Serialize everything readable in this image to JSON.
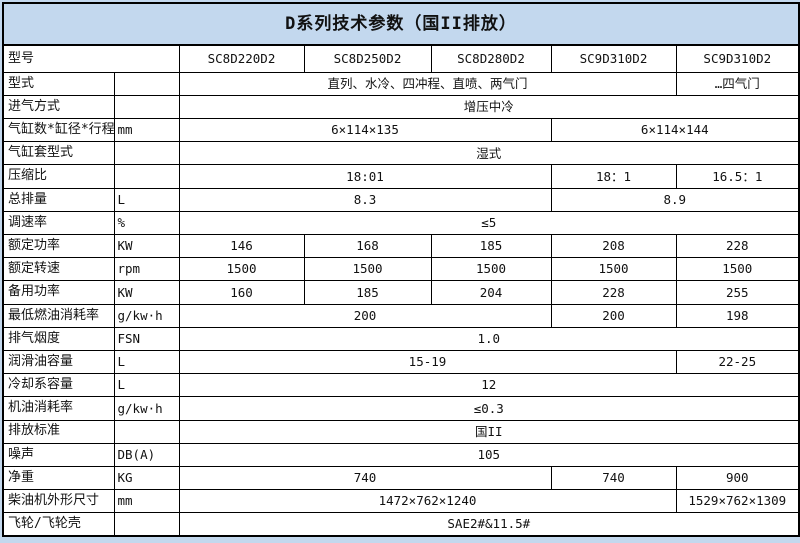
{
  "title": "D系列技术参数（国II排放）",
  "colors": {
    "page_bg": "#c3d8ee",
    "title_bg": "#c3d8ee",
    "cell_bg": "#ffffff",
    "border": "#000000"
  },
  "models": [
    "SC8D220D2",
    "SC8D250D2",
    "SC8D280D2",
    "SC9D310D2",
    "SC9D310D2"
  ],
  "rows": [
    {
      "label": "型号",
      "unit": null,
      "cells": [
        {
          "t": "SC8D220D2",
          "s": 1
        },
        {
          "t": "SC8D250D2",
          "s": 1
        },
        {
          "t": "SC8D280D2",
          "s": 1
        },
        {
          "t": "SC9D310D2",
          "s": 1
        },
        {
          "t": "SC9D310D2",
          "s": 1
        }
      ]
    },
    {
      "label": "型式",
      "unit": "",
      "cells": [
        {
          "t": "直列、水冷、四冲程、直喷、两气门",
          "s": 4
        },
        {
          "t": "…四气门",
          "s": 1
        }
      ]
    },
    {
      "label": "进气方式",
      "unit": "",
      "cells": [
        {
          "t": "增压中冷",
          "s": 5
        }
      ]
    },
    {
      "label": "气缸数*缸径*行程",
      "unit": "mm",
      "cells": [
        {
          "t": "6×114×135",
          "s": 3
        },
        {
          "t": "6×114×144",
          "s": 2
        }
      ]
    },
    {
      "label": "气缸套型式",
      "unit": "",
      "cells": [
        {
          "t": "湿式",
          "s": 5
        }
      ]
    },
    {
      "label": "压缩比",
      "unit": "",
      "cells": [
        {
          "t": "18:01",
          "s": 3
        },
        {
          "t": "18：1",
          "s": 1
        },
        {
          "t": "16.5：1",
          "s": 1
        }
      ]
    },
    {
      "label": "总排量",
      "unit": "L",
      "cells": [
        {
          "t": "8.3",
          "s": 3
        },
        {
          "t": "8.9",
          "s": 2
        }
      ]
    },
    {
      "label": "调速率",
      "unit": "%",
      "cells": [
        {
          "t": "≤5",
          "s": 5
        }
      ]
    },
    {
      "label": "额定功率",
      "unit": "KW",
      "cells": [
        {
          "t": "146",
          "s": 1
        },
        {
          "t": "168",
          "s": 1
        },
        {
          "t": "185",
          "s": 1
        },
        {
          "t": "208",
          "s": 1
        },
        {
          "t": "228",
          "s": 1
        }
      ]
    },
    {
      "label": "额定转速",
      "unit": "rpm",
      "cells": [
        {
          "t": "1500",
          "s": 1
        },
        {
          "t": "1500",
          "s": 1
        },
        {
          "t": "1500",
          "s": 1
        },
        {
          "t": "1500",
          "s": 1
        },
        {
          "t": "1500",
          "s": 1
        }
      ]
    },
    {
      "label": "备用功率",
      "unit": "KW",
      "cells": [
        {
          "t": "160",
          "s": 1
        },
        {
          "t": "185",
          "s": 1
        },
        {
          "t": "204",
          "s": 1
        },
        {
          "t": "228",
          "s": 1
        },
        {
          "t": "255",
          "s": 1
        }
      ]
    },
    {
      "label": "最低燃油消耗率",
      "unit": "g/kw·h",
      "cells": [
        {
          "t": "200",
          "s": 3
        },
        {
          "t": "200",
          "s": 1
        },
        {
          "t": "198",
          "s": 1
        }
      ]
    },
    {
      "label": "排气烟度",
      "unit": "FSN",
      "cells": [
        {
          "t": "1.0",
          "s": 5
        }
      ]
    },
    {
      "label": "润滑油容量",
      "unit": "L",
      "cells": [
        {
          "t": "15-19",
          "s": 4
        },
        {
          "t": "22-25",
          "s": 1
        }
      ]
    },
    {
      "label": "冷却系容量",
      "unit": "L",
      "cells": [
        {
          "t": "12",
          "s": 5
        }
      ]
    },
    {
      "label": "机油消耗率",
      "unit": "g/kw·h",
      "cells": [
        {
          "t": "≤0.3",
          "s": 5
        }
      ]
    },
    {
      "label": "排放标准",
      "unit": "",
      "cells": [
        {
          "t": "国II",
          "s": 5
        }
      ]
    },
    {
      "label": "噪声",
      "unit": "DB(A)",
      "cells": [
        {
          "t": "105",
          "s": 5
        }
      ]
    },
    {
      "label": "净重",
      "unit": "KG",
      "cells": [
        {
          "t": "740",
          "s": 3
        },
        {
          "t": "740",
          "s": 1
        },
        {
          "t": "900",
          "s": 1
        }
      ]
    },
    {
      "label": "柴油机外形尺寸",
      "unit": "mm",
      "cells": [
        {
          "t": "1472×762×1240",
          "s": 4
        },
        {
          "t": "1529×762×1309",
          "s": 1
        }
      ]
    },
    {
      "label": "飞轮/飞轮壳",
      "unit": "",
      "cells": [
        {
          "t": "SAE2#&11.5#",
          "s": 5
        }
      ]
    }
  ]
}
